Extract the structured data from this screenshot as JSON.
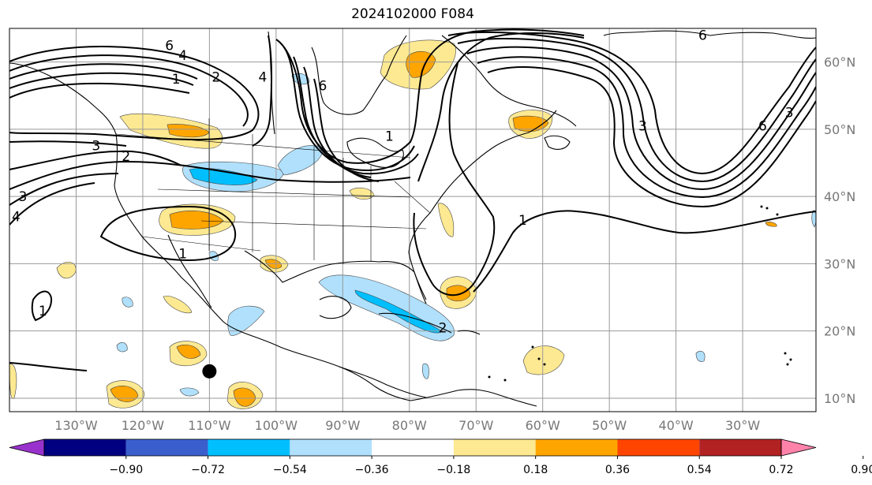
{
  "title": "2024102000 F084",
  "map": {
    "lon_min": -140,
    "lon_max": -19,
    "lat_min": 8,
    "lat_max": 65,
    "lon_ticks": [
      {
        "value": -130,
        "label": "130°W"
      },
      {
        "value": -120,
        "label": "120°W"
      },
      {
        "value": -110,
        "label": "110°W"
      },
      {
        "value": -100,
        "label": "100°W"
      },
      {
        "value": -90,
        "label": "90°W"
      },
      {
        "value": -80,
        "label": "80°W"
      },
      {
        "value": -70,
        "label": "70°W"
      },
      {
        "value": -60,
        "label": "60°W"
      },
      {
        "value": -50,
        "label": "50°W"
      },
      {
        "value": -40,
        "label": "40°W"
      },
      {
        "value": -30,
        "label": "30°W"
      }
    ],
    "lat_ticks": [
      {
        "value": 10,
        "label": "10°N"
      },
      {
        "value": 20,
        "label": "20°N"
      },
      {
        "value": 30,
        "label": "30°N"
      },
      {
        "value": 40,
        "label": "40°N"
      },
      {
        "value": 50,
        "label": "50°N"
      },
      {
        "value": 60,
        "label": "60°N"
      }
    ],
    "contour_labels": [
      {
        "text": "6",
        "lon": -116,
        "lat": 62.5
      },
      {
        "text": "4",
        "lon": -114,
        "lat": 61.0
      },
      {
        "text": "1",
        "lon": -115,
        "lat": 57.5
      },
      {
        "text": "2",
        "lon": -109,
        "lat": 57.8
      },
      {
        "text": "4",
        "lon": -102,
        "lat": 57.8
      },
      {
        "text": "6",
        "lon": -93,
        "lat": 56.5
      },
      {
        "text": "3",
        "lon": -127,
        "lat": 47.6
      },
      {
        "text": "2",
        "lon": -122.5,
        "lat": 46.0
      },
      {
        "text": "3",
        "lon": -138,
        "lat": 40.0
      },
      {
        "text": "4",
        "lon": -139,
        "lat": 37.0
      },
      {
        "text": "1",
        "lon": -114,
        "lat": 31.5
      },
      {
        "text": "1",
        "lon": -135,
        "lat": 23.0
      },
      {
        "text": "1",
        "lon": -83,
        "lat": 49.0
      },
      {
        "text": "1",
        "lon": -63,
        "lat": 36.5
      },
      {
        "text": "6",
        "lon": -36,
        "lat": 64.0
      },
      {
        "text": "3",
        "lon": -45,
        "lat": 50.5
      },
      {
        "text": "6",
        "lon": -27,
        "lat": 50.5
      },
      {
        "text": "3",
        "lon": -23,
        "lat": 52.5
      },
      {
        "text": "2",
        "lon": -75,
        "lat": 20.5
      }
    ],
    "storm_marker": {
      "lon": -110,
      "lat": 14
    }
  },
  "colorbar": {
    "colors": [
      "#9932cc",
      "#000080",
      "#3a5fcd",
      "#00bfff",
      "#b0e0fc",
      "#ffffff",
      "#fde992",
      "#ffa500",
      "#ff4500",
      "#b22222",
      "#ff82ab"
    ],
    "low_color": "#9932cc",
    "high_color": "#ff82ab",
    "tick_labels": [
      "−0.90",
      "−0.72",
      "−0.54",
      "−0.36",
      "−0.18",
      "0.18",
      "0.36",
      "0.54",
      "0.72",
      "0.90"
    ]
  }
}
